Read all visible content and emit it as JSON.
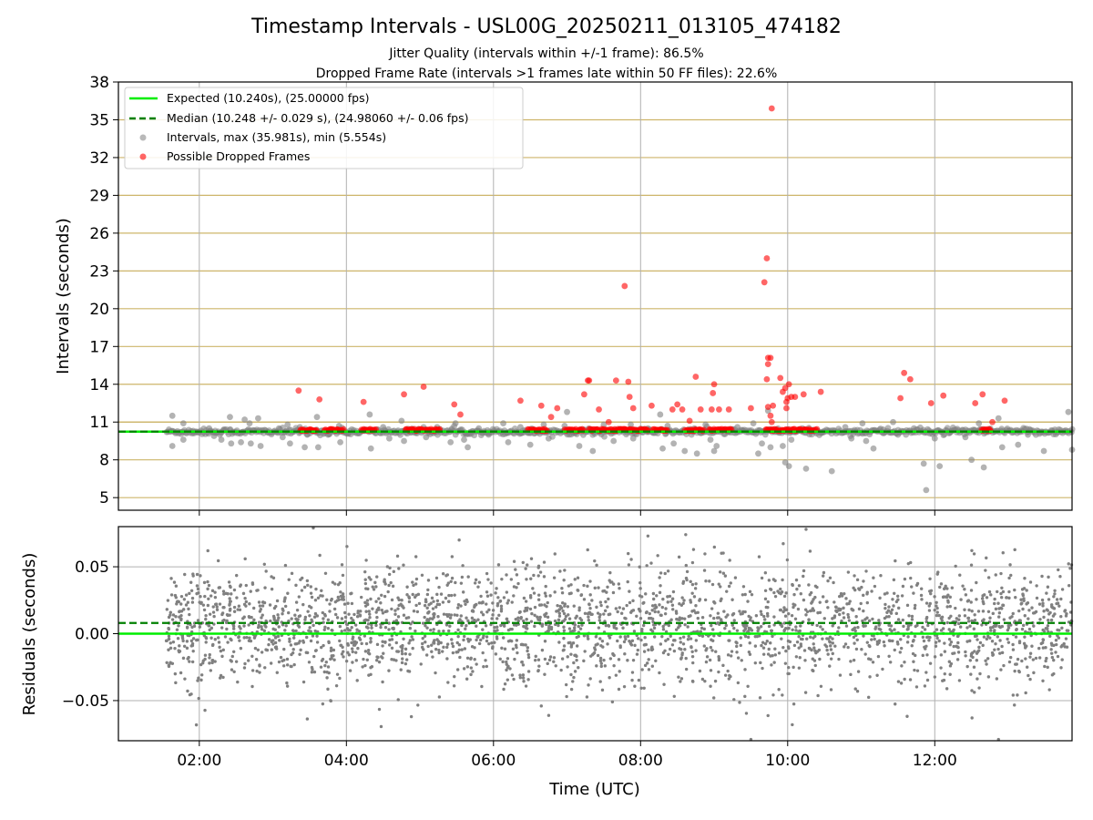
{
  "figure": {
    "title": "Timestamp Intervals - USL00G_20250211_013105_474182",
    "subtitle_1": "Jitter Quality (intervals within +/-1 frame): 86.5%",
    "subtitle_2": "Dropped Frame Rate (intervals >1 frames late within 50 FF files): 22.6%",
    "xlabel": "Time (UTC)"
  },
  "colors": {
    "expected": "#00ee00",
    "median": "#008000",
    "intervals": "#808080",
    "dropped": "#ff0000",
    "hgrid_top": "#cdb56a",
    "grid": "#b0b0b0"
  },
  "chart_data": [
    {
      "type": "scatter",
      "title": "",
      "xlabel": "",
      "ylabel": "Intervals (seconds)",
      "xlim": [
        "00:54",
        "13:52"
      ],
      "ylim": [
        4,
        38
      ],
      "x_ticks": [
        "02:00",
        "04:00",
        "06:00",
        "08:00",
        "10:00",
        "12:00"
      ],
      "y_ticks": [
        5,
        8,
        11,
        14,
        17,
        20,
        23,
        26,
        29,
        32,
        35,
        38
      ],
      "grid": true,
      "legend_position": "top-left",
      "legend": [
        "Expected (10.240s), (25.00000 fps)",
        "Median (10.248 +/- 0.029 s), (24.98060 +/- 0.06 fps)",
        "Intervals, max (35.981s), min (5.554s)",
        "Possible Dropped Frames"
      ],
      "expected_line": 10.24,
      "median_line": 10.248,
      "series": [
        {
          "name": "Intervals, max (35.981s), min (5.554s)",
          "points": [
            [
              "01:38",
              11.5
            ],
            [
              "01:38",
              9.1
            ],
            [
              "01:47",
              10.9
            ],
            [
              "01:47",
              9.6
            ],
            [
              "01:55",
              10.3
            ],
            [
              "02:08",
              10.5
            ],
            [
              "02:12",
              9.9
            ],
            [
              "02:18",
              9.6
            ],
            [
              "02:25",
              11.4
            ],
            [
              "02:26",
              9.3
            ],
            [
              "02:34",
              9.4
            ],
            [
              "02:37",
              11.2
            ],
            [
              "02:41",
              10.9
            ],
            [
              "02:42",
              9.3
            ],
            [
              "02:48",
              11.3
            ],
            [
              "02:50",
              9.1
            ],
            [
              "02:56",
              10.2
            ],
            [
              "03:05",
              10.5
            ],
            [
              "03:08",
              9.8
            ],
            [
              "03:12",
              10.8
            ],
            [
              "03:14",
              9.3
            ],
            [
              "03:22",
              10.6
            ],
            [
              "03:26",
              9.0
            ],
            [
              "03:28",
              10.0
            ],
            [
              "03:36",
              11.4
            ],
            [
              "03:37",
              9.0
            ],
            [
              "03:45",
              10.0
            ],
            [
              "03:54",
              10.7
            ],
            [
              "03:55",
              9.4
            ],
            [
              "04:02",
              10.1
            ],
            [
              "04:15",
              10.4
            ],
            [
              "04:19",
              11.6
            ],
            [
              "04:20",
              8.9
            ],
            [
              "04:30",
              10.6
            ],
            [
              "04:35",
              9.7
            ],
            [
              "04:45",
              11.1
            ],
            [
              "04:47",
              9.5
            ],
            [
              "04:54",
              10.3
            ],
            [
              "05:05",
              9.8
            ],
            [
              "05:14",
              10.6
            ],
            [
              "05:25",
              9.4
            ],
            [
              "05:29",
              10.9
            ],
            [
              "05:36",
              9.6
            ],
            [
              "05:39",
              9.0
            ],
            [
              "05:48",
              10.5
            ],
            [
              "05:56",
              10.1
            ],
            [
              "06:08",
              10.9
            ],
            [
              "06:12",
              9.4
            ],
            [
              "06:22",
              10.6
            ],
            [
              "06:30",
              9.2
            ],
            [
              "06:41",
              10.8
            ],
            [
              "06:45",
              9.7
            ],
            [
              "06:58",
              10.7
            ],
            [
              "07:00",
              11.8
            ],
            [
              "07:10",
              9.1
            ],
            [
              "07:19",
              10.4
            ],
            [
              "07:21",
              8.7
            ],
            [
              "07:30",
              10.8
            ],
            [
              "07:38",
              9.5
            ],
            [
              "07:52",
              10.8
            ],
            [
              "07:54",
              9.7
            ],
            [
              "08:06",
              10.5
            ],
            [
              "08:16",
              11.6
            ],
            [
              "08:18",
              8.9
            ],
            [
              "08:22",
              10.7
            ],
            [
              "08:27",
              9.3
            ],
            [
              "08:36",
              8.7
            ],
            [
              "08:44",
              10.5
            ],
            [
              "08:46",
              8.5
            ],
            [
              "08:53",
              10.8
            ],
            [
              "08:57",
              9.6
            ],
            [
              "09:00",
              8.7
            ],
            [
              "09:02",
              9.1
            ],
            [
              "09:12",
              10.3
            ],
            [
              "09:19",
              10.6
            ],
            [
              "09:32",
              10.9
            ],
            [
              "09:36",
              8.5
            ],
            [
              "09:39",
              9.3
            ],
            [
              "09:44",
              11.9
            ],
            [
              "09:46",
              9.0
            ],
            [
              "09:56",
              9.1
            ],
            [
              "09:58",
              7.8
            ],
            [
              "10:01",
              7.5
            ],
            [
              "10:03",
              9.6
            ],
            [
              "10:12",
              10.5
            ],
            [
              "10:15",
              7.3
            ],
            [
              "10:28",
              10.2
            ],
            [
              "10:36",
              7.1
            ],
            [
              "10:47",
              10.6
            ],
            [
              "10:52",
              9.7
            ],
            [
              "11:01",
              10.9
            ],
            [
              "11:04",
              9.5
            ],
            [
              "11:10",
              8.9
            ],
            [
              "11:18",
              10.4
            ],
            [
              "11:26",
              11.0
            ],
            [
              "11:30",
              10.0
            ],
            [
              "11:43",
              10.5
            ],
            [
              "11:51",
              7.7
            ],
            [
              "11:53",
              5.6
            ],
            [
              "12:00",
              9.7
            ],
            [
              "12:04",
              7.5
            ],
            [
              "12:13",
              10.2
            ],
            [
              "12:25",
              9.8
            ],
            [
              "12:30",
              8.0
            ],
            [
              "12:36",
              10.9
            ],
            [
              "12:40",
              7.4
            ],
            [
              "12:52",
              11.3
            ],
            [
              "12:55",
              9.0
            ],
            [
              "13:02",
              10.3
            ],
            [
              "13:08",
              9.2
            ],
            [
              "13:16",
              10.0
            ],
            [
              "13:29",
              8.7
            ],
            [
              "13:38",
              10.4
            ],
            [
              "13:49",
              11.8
            ],
            [
              "13:52",
              8.8
            ]
          ]
        },
        {
          "name": "Possible Dropped Frames",
          "points": [
            [
              "03:21",
              13.5
            ],
            [
              "03:38",
              12.8
            ],
            [
              "04:14",
              12.6
            ],
            [
              "04:47",
              13.2
            ],
            [
              "05:03",
              13.8
            ],
            [
              "05:28",
              12.4
            ],
            [
              "05:33",
              11.6
            ],
            [
              "06:22",
              12.7
            ],
            [
              "06:39",
              12.3
            ],
            [
              "06:47",
              11.4
            ],
            [
              "06:52",
              12.1
            ],
            [
              "07:14",
              13.2
            ],
            [
              "07:17",
              14.3
            ],
            [
              "07:18",
              14.3
            ],
            [
              "07:26",
              12.0
            ],
            [
              "07:34",
              11.0
            ],
            [
              "07:40",
              14.3
            ],
            [
              "07:47",
              21.8
            ],
            [
              "07:50",
              14.2
            ],
            [
              "07:51",
              13.0
            ],
            [
              "07:54",
              12.1
            ],
            [
              "08:09",
              12.3
            ],
            [
              "08:26",
              12.0
            ],
            [
              "08:30",
              12.4
            ],
            [
              "08:34",
              12.0
            ],
            [
              "08:40",
              11.1
            ],
            [
              "08:45",
              14.6
            ],
            [
              "08:49",
              12.0
            ],
            [
              "08:58",
              12.0
            ],
            [
              "08:59",
              13.3
            ],
            [
              "09:00",
              14.0
            ],
            [
              "09:04",
              12.0
            ],
            [
              "09:12",
              12.0
            ],
            [
              "09:30",
              12.1
            ],
            [
              "09:41",
              22.1
            ],
            [
              "09:43",
              24.0
            ],
            [
              "09:44",
              16.1
            ],
            [
              "09:46",
              16.1
            ],
            [
              "09:44",
              15.6
            ],
            [
              "09:43",
              14.4
            ],
            [
              "09:44",
              12.2
            ],
            [
              "09:46",
              11.5
            ],
            [
              "09:47",
              11.0
            ],
            [
              "09:47",
              35.9
            ],
            [
              "09:48",
              12.3
            ],
            [
              "09:54",
              14.5
            ],
            [
              "09:56",
              13.4
            ],
            [
              "09:58",
              13.7
            ],
            [
              "09:59",
              12.6
            ],
            [
              "09:59",
              12.1
            ],
            [
              "10:00",
              12.9
            ],
            [
              "10:01",
              14.0
            ],
            [
              "10:03",
              13.0
            ],
            [
              "10:06",
              13.0
            ],
            [
              "10:13",
              13.2
            ],
            [
              "10:27",
              13.4
            ],
            [
              "11:32",
              12.9
            ],
            [
              "11:35",
              14.9
            ],
            [
              "11:40",
              14.4
            ],
            [
              "11:57",
              12.5
            ],
            [
              "12:07",
              13.1
            ],
            [
              "12:33",
              12.5
            ],
            [
              "12:39",
              13.2
            ],
            [
              "12:47",
              11.0
            ],
            [
              "12:57",
              12.7
            ]
          ]
        }
      ]
    },
    {
      "type": "scatter",
      "title": "",
      "xlabel": "Time (UTC)",
      "ylabel": "Residuals (seconds)",
      "xlim": [
        "00:54",
        "13:52"
      ],
      "ylim": [
        -0.08,
        0.08
      ],
      "x_ticks": [
        "02:00",
        "04:00",
        "06:00",
        "08:00",
        "10:00",
        "12:00"
      ],
      "y_ticks": [
        "−0.05",
        "0.00",
        "0.05"
      ],
      "y_tick_values": [
        -0.05,
        0,
        0.05
      ],
      "grid": true,
      "expected_line": 0.0,
      "median_line": 0.008,
      "series": [
        {
          "name": "",
          "time_range": [
            "01:33",
            "13:52"
          ],
          "center": 0.005,
          "spread": 0.022,
          "points_count": 2800,
          "outliers": [
            [
              "03:33",
              0.079
            ],
            [
              "09:30",
              -0.079
            ],
            [
              "10:15",
              0.078
            ],
            [
              "12:52",
              -0.079
            ],
            [
              "04:53",
              -0.062
            ],
            [
              "06:39",
              -0.054
            ],
            [
              "02:07",
              0.062
            ],
            [
              "08:06",
              0.073
            ],
            [
              "05:32",
              0.07
            ]
          ]
        }
      ]
    }
  ]
}
